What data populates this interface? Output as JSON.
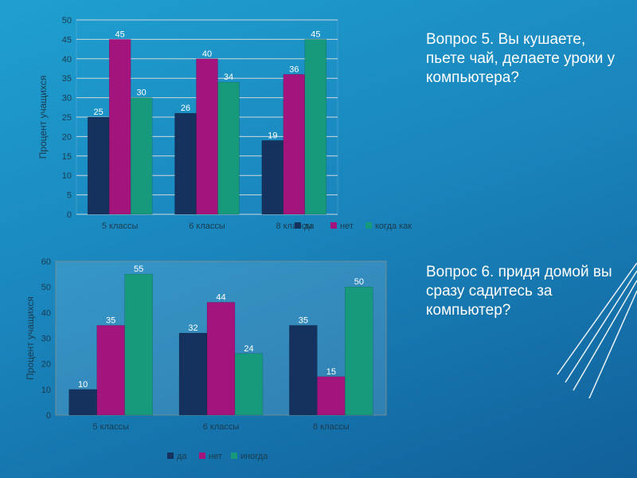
{
  "questions": {
    "q5": "Вопрос 5. Вы кушаете, пьете чай, делаете уроки у компьютера?",
    "q6": "Вопрос 6. придя домой вы сразу садитесь за компьютер?"
  },
  "colors": {
    "series1": "#15325e",
    "series2": "#a3147c",
    "series3": "#179a7c",
    "axis_text": "#1a3b4f",
    "label_text": "#ffffff"
  },
  "chart_data": [
    {
      "type": "bar",
      "title": "",
      "xlabel": "",
      "ylabel": "Процент учащихся",
      "ylim": [
        0,
        50
      ],
      "yticks": [
        0,
        5,
        10,
        15,
        20,
        25,
        30,
        35,
        40,
        45,
        50
      ],
      "categories": [
        "5 классы",
        "6 классы",
        "8 классы"
      ],
      "series": [
        {
          "name": "да",
          "values": [
            25,
            26,
            19
          ]
        },
        {
          "name": "нет",
          "values": [
            45,
            40,
            36
          ]
        },
        {
          "name": "когда как",
          "values": [
            30,
            34,
            45
          ]
        }
      ],
      "grid": true,
      "legend": "bottom"
    },
    {
      "type": "bar",
      "title": "",
      "xlabel": "",
      "ylabel": "Процент учащихся",
      "ylim": [
        0,
        60
      ],
      "yticks": [
        0,
        10,
        20,
        30,
        40,
        50,
        60
      ],
      "categories": [
        "5 классы",
        "6 классы",
        "8 классы"
      ],
      "series": [
        {
          "name": "да",
          "values": [
            10,
            32,
            35
          ]
        },
        {
          "name": "нет",
          "values": [
            35,
            44,
            15
          ]
        },
        {
          "name": "иногда",
          "values": [
            55,
            24,
            50
          ]
        }
      ],
      "grid": false,
      "legend": "bottom"
    }
  ]
}
